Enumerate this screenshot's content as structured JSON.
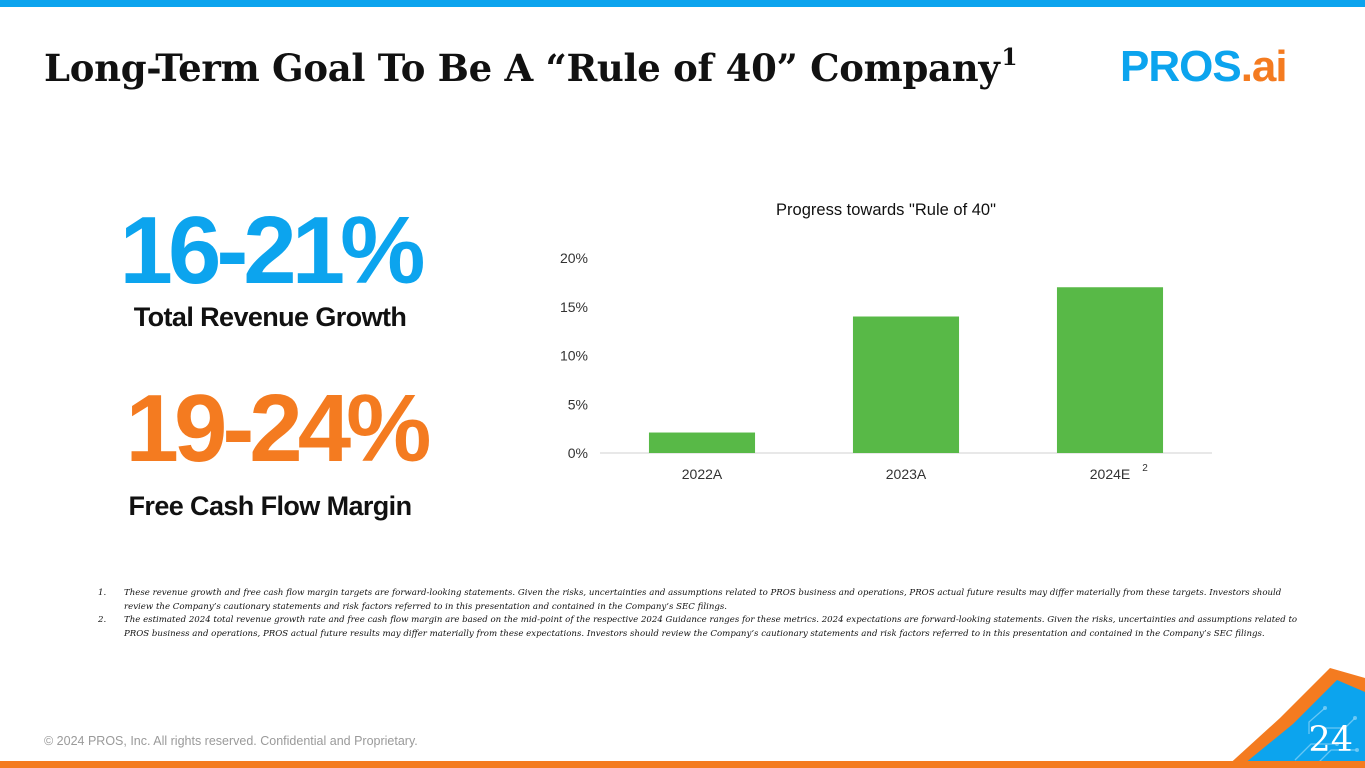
{
  "slide": {
    "title": "Long-Term Goal To Be A “Rule of 40” Company",
    "title_superscript": "1",
    "page_number": "24",
    "copyright": "© 2024 PROS, Inc. All rights reserved. Confidential and Proprietary."
  },
  "logo": {
    "pros": "PROS",
    "ai": ".ai"
  },
  "stats": [
    {
      "value": "16-21%",
      "label": "Total Revenue Growth",
      "color": "#0ca4ee"
    },
    {
      "value": "19-24%",
      "label": "Free Cash Flow Margin",
      "color": "#f47b20"
    }
  ],
  "chart_data": {
    "type": "bar",
    "title": "Progress towards \"Rule of 40\"",
    "categories": [
      "2022A",
      "2023A",
      "2024E"
    ],
    "category_superscripts": [
      "",
      "",
      "2"
    ],
    "values": [
      2.1,
      14,
      17
    ],
    "yticks": [
      "0%",
      "5%",
      "10%",
      "15%",
      "20%"
    ],
    "ylim": [
      0,
      20
    ],
    "xlabel": "",
    "ylabel": "",
    "bar_color": "#58b947",
    "grid": false
  },
  "footnotes": [
    {
      "num": "1.",
      "text": "These revenue growth and free cash flow margin targets are forward-looking statements. Given the risks, uncertainties and assumptions related to PROS business and operations, PROS actual future results may differ materially from these targets. Investors should review the Company’s cautionary statements and risk factors referred to in this presentation and contained in the Company’s SEC filings."
    },
    {
      "num": "2.",
      "text": "The estimated 2024 total revenue growth rate and free cash flow margin are based on the mid-point of the respective 2024 Guidance ranges for these metrics. 2024 expectations are forward-looking statements. Given the risks, uncertainties and assumptions related to PROS business and operations, PROS actual future results may differ materially from these expectations. Investors should review the Company’s cautionary statements and risk factors referred to in this presentation and contained in the Company’s SEC filings."
    }
  ],
  "colors": {
    "blue": "#0ca4ee",
    "orange": "#f47b20",
    "green": "#58b947"
  }
}
